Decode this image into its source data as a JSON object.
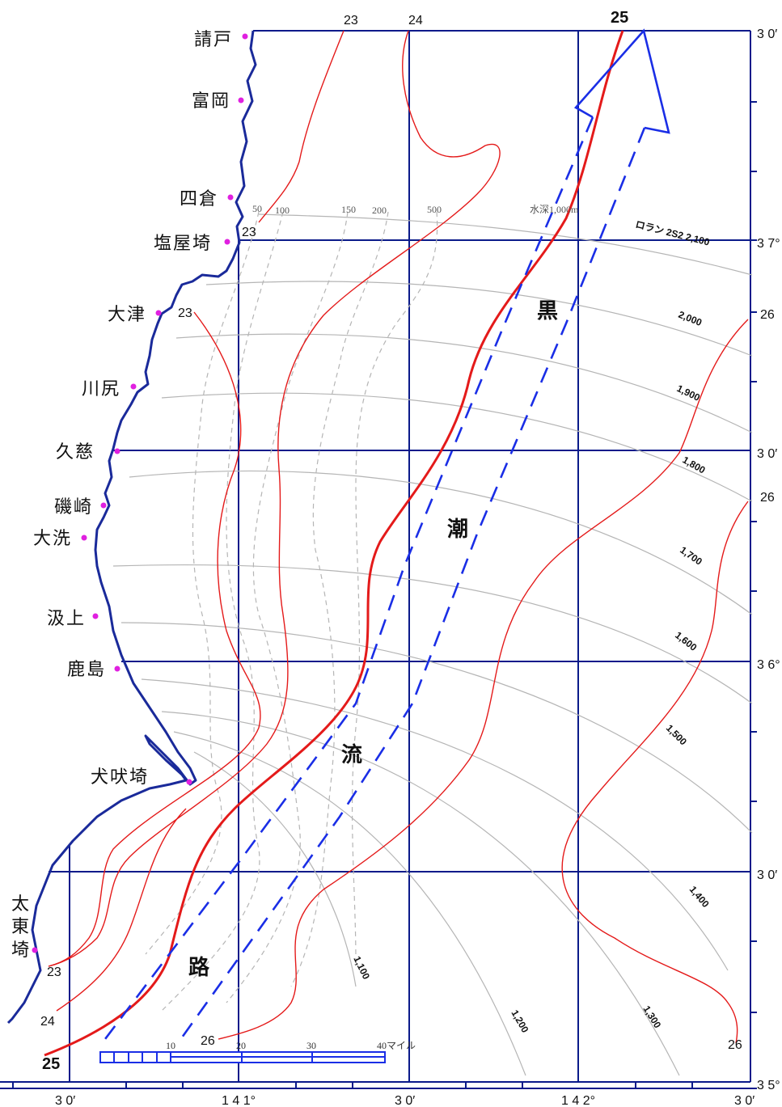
{
  "places": {
    "ukedo": "請戸",
    "tomioka": "富岡",
    "yotsukura": "四倉",
    "shioyazaki": "塩屋埼",
    "otsu": "大津",
    "kawajiri": "川尻",
    "kuji": "久慈",
    "isozaki": "磯崎",
    "oarai": "大洗",
    "isogami": "汲上",
    "kashima": "鹿島",
    "inubozaki": "犬吠埼",
    "taitozaki": [
      "太",
      "東",
      "埼"
    ]
  },
  "current": {
    "label_chars": [
      "黒",
      "潮",
      "流",
      "路"
    ]
  },
  "isotherms": {
    "t23": "23",
    "t24": "24",
    "t25": "25",
    "t26": "26"
  },
  "coords": {
    "lat_30_top": "3 0′",
    "lat_37": "3 7°",
    "lat_30_a": "3 0′",
    "lat_36": "3 6°",
    "lat_30_b": "3 0′",
    "lat_35": "3 5°",
    "lon_30_left": "3 0′",
    "lon_141": "1 4 1°",
    "lon_30_mid": "3 0′",
    "lon_142": "1 4 2°",
    "lon_30_right": "3 0′"
  },
  "depths": {
    "d50": "50",
    "d100": "100",
    "d150": "150",
    "d200": "200",
    "d500": "500",
    "d1000": "水深1,000m",
    "loran": "ロラン 2S2 2,100",
    "d2000": "2,000",
    "d1900": "1,900",
    "d1800": "1,800",
    "d1700": "1,700",
    "d1600": "1,600",
    "d1500": "1,500",
    "d1400": "1,400",
    "d1300": "1,300",
    "d1200": "1,200",
    "d1100": "1,100"
  },
  "scale": {
    "t10": "10",
    "t20": "20",
    "t30": "30",
    "t40": "40マイル"
  },
  "colors": {
    "coast": "#1a2a9a",
    "grid": "#0a1a8a",
    "isotherm": "#e41a1a",
    "kuroshio": "#1a2ee6",
    "bathy": "#b0b0b0",
    "marker": "#e020e0"
  }
}
